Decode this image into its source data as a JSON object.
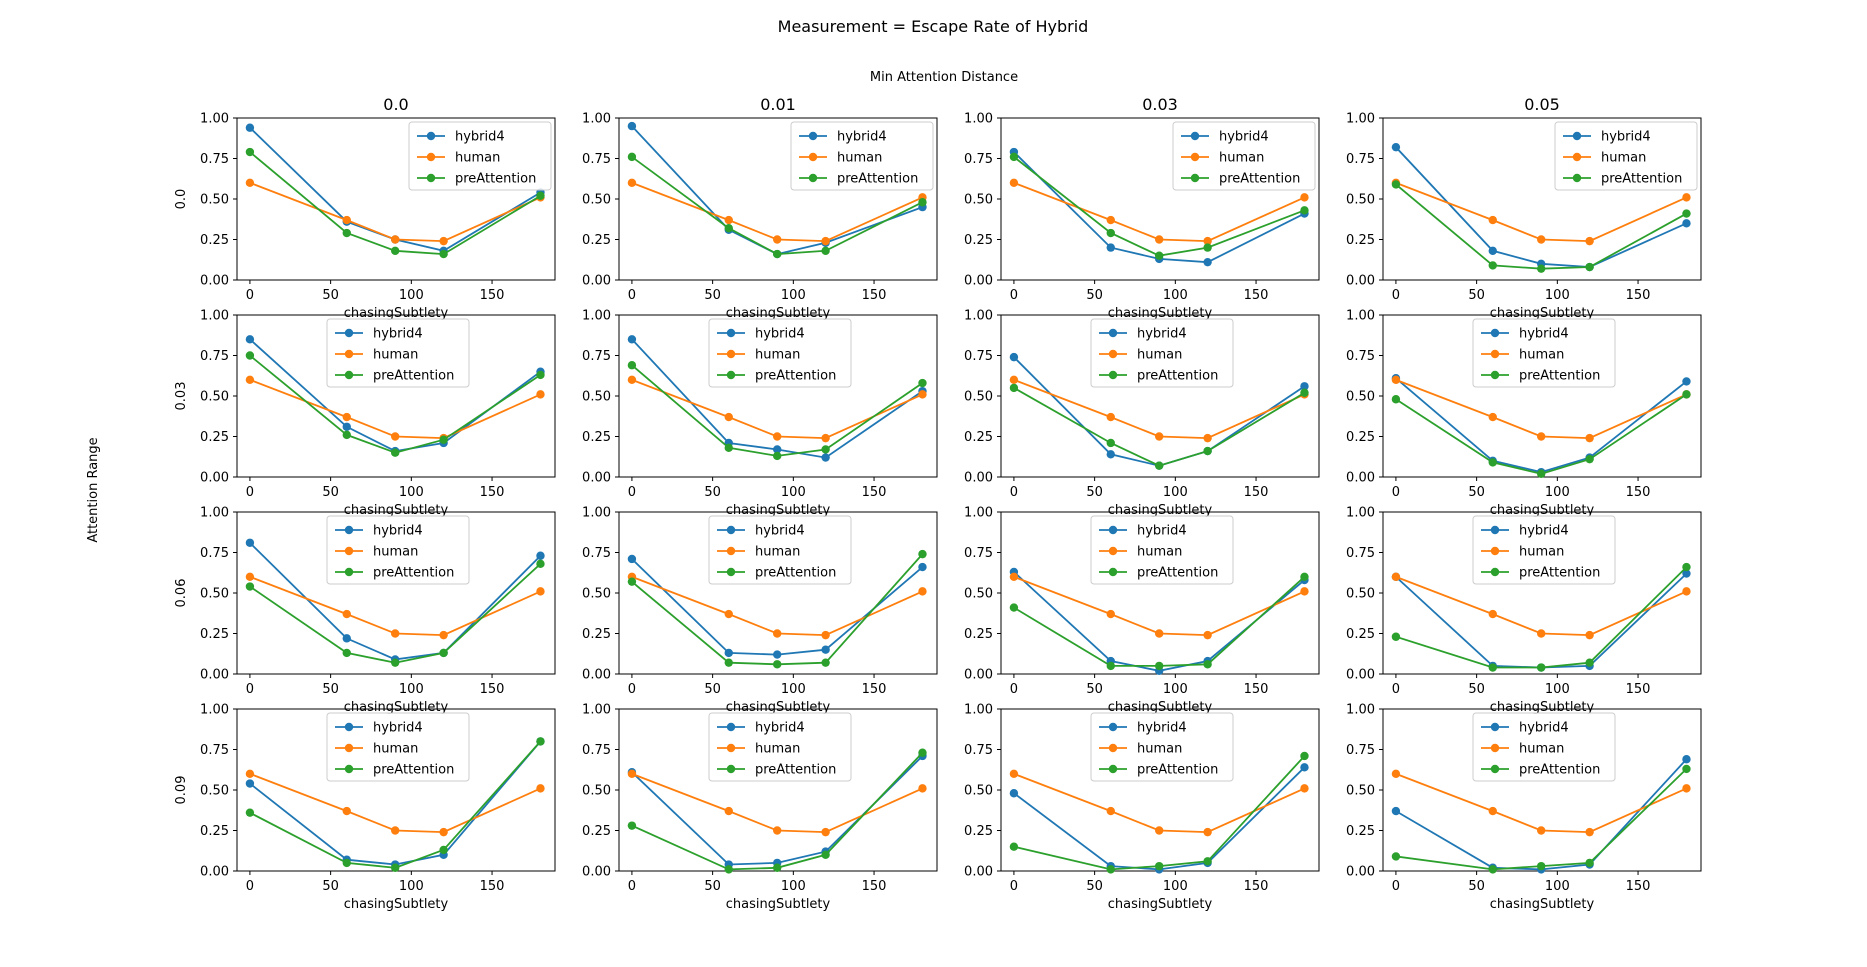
{
  "figure": {
    "title": "Measurement = Escape Rate of Hybrid",
    "col_header": "Min Attention Distance",
    "row_header": "Attention Range",
    "col_values": [
      "0.0",
      "0.01",
      "0.03",
      "0.05"
    ],
    "row_values": [
      "0.0",
      "0.03",
      "0.06",
      "0.09"
    ],
    "xlabel": "chasingSubtlety"
  },
  "colors": {
    "hybrid4": "#1f77b4",
    "human": "#ff7f0e",
    "preAttention": "#2ca02c"
  },
  "chart_data": {
    "type": "line",
    "layout": "grid 4 rows x 4 columns; rows = Attention Range, columns = Min Attention Distance",
    "x": [
      0,
      60,
      90,
      120,
      180
    ],
    "xlabel": "chasingSubtlety",
    "xticks": [
      0,
      50,
      100,
      150
    ],
    "ylim": [
      0,
      1
    ],
    "yticks": [
      "0.00",
      "0.25",
      "0.50",
      "0.75",
      "1.00"
    ],
    "legend": [
      "hybrid4",
      "human",
      "preAttention"
    ],
    "legend_position": "upper center / upper right",
    "grid": false,
    "panels": [
      {
        "row": "0.0",
        "col": "0.0",
        "series": [
          {
            "name": "hybrid4",
            "values": [
              0.94,
              0.36,
              0.25,
              0.18,
              0.54
            ]
          },
          {
            "name": "human",
            "values": [
              0.6,
              0.37,
              0.25,
              0.24,
              0.51
            ]
          },
          {
            "name": "preAttention",
            "values": [
              0.79,
              0.29,
              0.18,
              0.16,
              0.52
            ]
          }
        ]
      },
      {
        "row": "0.0",
        "col": "0.01",
        "series": [
          {
            "name": "hybrid4",
            "values": [
              0.95,
              0.31,
              0.16,
              0.23,
              0.45
            ]
          },
          {
            "name": "human",
            "values": [
              0.6,
              0.37,
              0.25,
              0.24,
              0.51
            ]
          },
          {
            "name": "preAttention",
            "values": [
              0.76,
              0.32,
              0.16,
              0.18,
              0.48
            ]
          }
        ]
      },
      {
        "row": "0.0",
        "col": "0.03",
        "series": [
          {
            "name": "hybrid4",
            "values": [
              0.79,
              0.2,
              0.13,
              0.11,
              0.41
            ]
          },
          {
            "name": "human",
            "values": [
              0.6,
              0.37,
              0.25,
              0.24,
              0.51
            ]
          },
          {
            "name": "preAttention",
            "values": [
              0.76,
              0.29,
              0.15,
              0.2,
              0.43
            ]
          }
        ]
      },
      {
        "row": "0.0",
        "col": "0.05",
        "series": [
          {
            "name": "hybrid4",
            "values": [
              0.82,
              0.18,
              0.1,
              0.08,
              0.35
            ]
          },
          {
            "name": "human",
            "values": [
              0.6,
              0.37,
              0.25,
              0.24,
              0.51
            ]
          },
          {
            "name": "preAttention",
            "values": [
              0.59,
              0.09,
              0.07,
              0.08,
              0.41
            ]
          }
        ]
      },
      {
        "row": "0.03",
        "col": "0.0",
        "series": [
          {
            "name": "hybrid4",
            "values": [
              0.85,
              0.31,
              0.16,
              0.21,
              0.65
            ]
          },
          {
            "name": "human",
            "values": [
              0.6,
              0.37,
              0.25,
              0.24,
              0.51
            ]
          },
          {
            "name": "preAttention",
            "values": [
              0.75,
              0.26,
              0.15,
              0.23,
              0.63
            ]
          }
        ]
      },
      {
        "row": "0.03",
        "col": "0.01",
        "series": [
          {
            "name": "hybrid4",
            "values": [
              0.85,
              0.21,
              0.17,
              0.12,
              0.53
            ]
          },
          {
            "name": "human",
            "values": [
              0.6,
              0.37,
              0.25,
              0.24,
              0.51
            ]
          },
          {
            "name": "preAttention",
            "values": [
              0.69,
              0.18,
              0.13,
              0.17,
              0.58
            ]
          }
        ]
      },
      {
        "row": "0.03",
        "col": "0.03",
        "series": [
          {
            "name": "hybrid4",
            "values": [
              0.74,
              0.14,
              0.07,
              0.16,
              0.56
            ]
          },
          {
            "name": "human",
            "values": [
              0.6,
              0.37,
              0.25,
              0.24,
              0.51
            ]
          },
          {
            "name": "preAttention",
            "values": [
              0.55,
              0.21,
              0.07,
              0.16,
              0.52
            ]
          }
        ]
      },
      {
        "row": "0.03",
        "col": "0.05",
        "series": [
          {
            "name": "hybrid4",
            "values": [
              0.61,
              0.1,
              0.03,
              0.12,
              0.59
            ]
          },
          {
            "name": "human",
            "values": [
              0.6,
              0.37,
              0.25,
              0.24,
              0.51
            ]
          },
          {
            "name": "preAttention",
            "values": [
              0.48,
              0.09,
              0.02,
              0.11,
              0.51
            ]
          }
        ]
      },
      {
        "row": "0.06",
        "col": "0.0",
        "series": [
          {
            "name": "hybrid4",
            "values": [
              0.81,
              0.22,
              0.09,
              0.13,
              0.73
            ]
          },
          {
            "name": "human",
            "values": [
              0.6,
              0.37,
              0.25,
              0.24,
              0.51
            ]
          },
          {
            "name": "preAttention",
            "values": [
              0.54,
              0.13,
              0.07,
              0.13,
              0.68
            ]
          }
        ]
      },
      {
        "row": "0.06",
        "col": "0.01",
        "series": [
          {
            "name": "hybrid4",
            "values": [
              0.71,
              0.13,
              0.12,
              0.15,
              0.66
            ]
          },
          {
            "name": "human",
            "values": [
              0.6,
              0.37,
              0.25,
              0.24,
              0.51
            ]
          },
          {
            "name": "preAttention",
            "values": [
              0.57,
              0.07,
              0.06,
              0.07,
              0.74
            ]
          }
        ]
      },
      {
        "row": "0.06",
        "col": "0.03",
        "series": [
          {
            "name": "hybrid4",
            "values": [
              0.63,
              0.08,
              0.02,
              0.08,
              0.58
            ]
          },
          {
            "name": "human",
            "values": [
              0.6,
              0.37,
              0.25,
              0.24,
              0.51
            ]
          },
          {
            "name": "preAttention",
            "values": [
              0.41,
              0.05,
              0.05,
              0.06,
              0.6
            ]
          }
        ]
      },
      {
        "row": "0.06",
        "col": "0.05",
        "series": [
          {
            "name": "hybrid4",
            "values": [
              0.6,
              0.05,
              0.04,
              0.05,
              0.62
            ]
          },
          {
            "name": "human",
            "values": [
              0.6,
              0.37,
              0.25,
              0.24,
              0.51
            ]
          },
          {
            "name": "preAttention",
            "values": [
              0.23,
              0.04,
              0.04,
              0.07,
              0.66
            ]
          }
        ]
      },
      {
        "row": "0.09",
        "col": "0.0",
        "series": [
          {
            "name": "hybrid4",
            "values": [
              0.54,
              0.07,
              0.04,
              0.1,
              0.8
            ]
          },
          {
            "name": "human",
            "values": [
              0.6,
              0.37,
              0.25,
              0.24,
              0.51
            ]
          },
          {
            "name": "preAttention",
            "values": [
              0.36,
              0.05,
              0.02,
              0.13,
              0.8
            ]
          }
        ]
      },
      {
        "row": "0.09",
        "col": "0.01",
        "series": [
          {
            "name": "hybrid4",
            "values": [
              0.61,
              0.04,
              0.05,
              0.12,
              0.71
            ]
          },
          {
            "name": "human",
            "values": [
              0.6,
              0.37,
              0.25,
              0.24,
              0.51
            ]
          },
          {
            "name": "preAttention",
            "values": [
              0.28,
              0.01,
              0.02,
              0.1,
              0.73
            ]
          }
        ]
      },
      {
        "row": "0.09",
        "col": "0.03",
        "series": [
          {
            "name": "hybrid4",
            "values": [
              0.48,
              0.03,
              0.01,
              0.05,
              0.64
            ]
          },
          {
            "name": "human",
            "values": [
              0.6,
              0.37,
              0.25,
              0.24,
              0.51
            ]
          },
          {
            "name": "preAttention",
            "values": [
              0.15,
              0.01,
              0.03,
              0.06,
              0.71
            ]
          }
        ]
      },
      {
        "row": "0.09",
        "col": "0.05",
        "series": [
          {
            "name": "hybrid4",
            "values": [
              0.37,
              0.02,
              0.01,
              0.04,
              0.69
            ]
          },
          {
            "name": "human",
            "values": [
              0.6,
              0.37,
              0.25,
              0.24,
              0.51
            ]
          },
          {
            "name": "preAttention",
            "values": [
              0.09,
              0.01,
              0.03,
              0.05,
              0.63
            ]
          }
        ]
      }
    ]
  }
}
